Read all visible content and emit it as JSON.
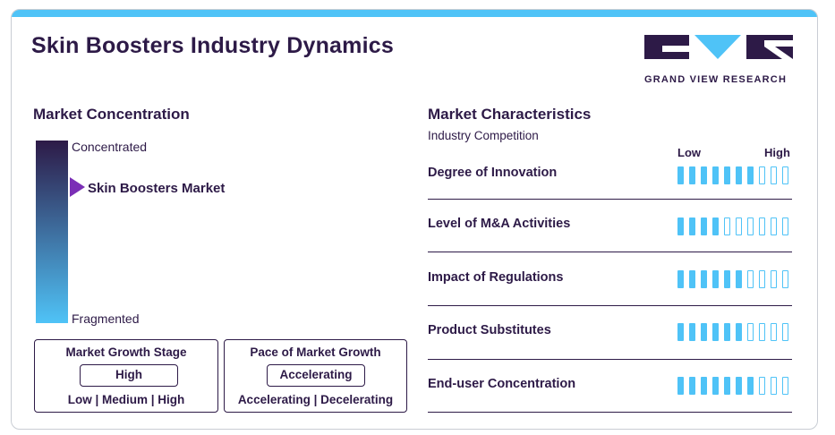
{
  "header": {
    "title": "Skin Boosters Industry Dynamics",
    "logo_text": "GRAND VIEW RESEARCH",
    "colors": {
      "accent": "#4fc3f7",
      "brand": "#2d1a47",
      "marker": "#7b2fb6"
    }
  },
  "concentration": {
    "title": "Market Concentration",
    "top_label": "Concentrated",
    "bottom_label": "Fragmented",
    "marker_label": "Skin Boosters Market",
    "marker_icon": "triangle-pointer-icon"
  },
  "growth_stage": {
    "title": "Market Growth Stage",
    "value": "High",
    "options_text": "Low | Medium | High"
  },
  "growth_pace": {
    "title": "Pace of Market Growth",
    "value": "Accelerating",
    "options_text": "Accelerating | Decelerating"
  },
  "characteristics": {
    "title": "Market Characteristics",
    "subtitle": "Industry Competition",
    "scale_low": "Low",
    "scale_high": "High",
    "scale_max": 10,
    "rows": [
      {
        "label": "Degree of Innovation",
        "level": 7
      },
      {
        "label": "Level of M&A Activities",
        "level": 4
      },
      {
        "label": "Impact of Regulations",
        "level": 6
      },
      {
        "label": "Product Substitutes",
        "level": 6
      },
      {
        "label": "End-user Concentration",
        "level": 7
      }
    ]
  }
}
